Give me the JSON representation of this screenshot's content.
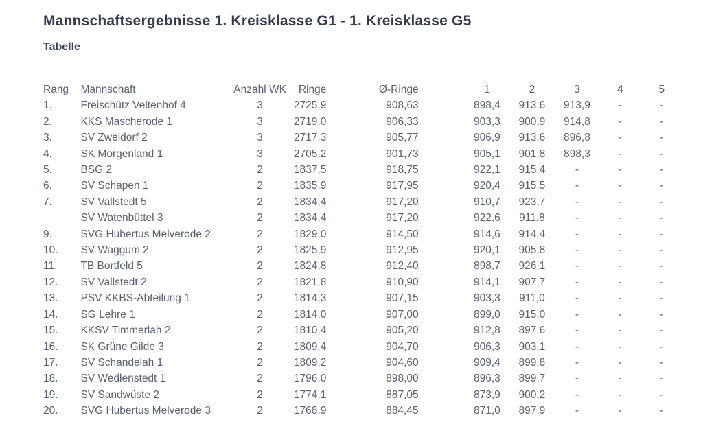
{
  "page": {
    "title": "Mannschaftsergebnisse 1. Kreisklasse G1 - 1. Kreisklasse G5",
    "subtitle": "Tabelle"
  },
  "colors": {
    "background": "#ffffff",
    "title_text": "#343b4d",
    "table_text": "#59606e"
  },
  "table": {
    "columns": [
      "Rang",
      "Mannschaft",
      "Anzahl WK",
      "Ringe",
      "Ø-Ringe",
      "1",
      "2",
      "3",
      "4",
      "5"
    ],
    "rows": [
      [
        "1.",
        "Freischütz Veltenhof 4",
        "3",
        "2725,9",
        "908,63",
        "898,4",
        "913,6",
        "913,9",
        "-",
        "-"
      ],
      [
        "2.",
        "KKS Mascherode 1",
        "3",
        "2719,0",
        "906,33",
        "903,3",
        "900,9",
        "914,8",
        "-",
        "-"
      ],
      [
        "3.",
        "SV Zweidorf 2",
        "3",
        "2717,3",
        "905,77",
        "906,9",
        "913,6",
        "896,8",
        "-",
        "-"
      ],
      [
        "4.",
        "SK Morgenland 1",
        "3",
        "2705,2",
        "901,73",
        "905,1",
        "901,8",
        "898,3",
        "-",
        "-"
      ],
      [
        "5.",
        "BSG 2",
        "2",
        "1837,5",
        "918,75",
        "922,1",
        "915,4",
        "-",
        "-",
        "-"
      ],
      [
        "6.",
        "SV Schapen 1",
        "2",
        "1835,9",
        "917,95",
        "920,4",
        "915,5",
        "-",
        "-",
        "-"
      ],
      [
        "7.",
        "SV Vallstedt 5",
        "2",
        "1834,4",
        "917,20",
        "910,7",
        "923,7",
        "-",
        "-",
        "-"
      ],
      [
        "",
        "SV Watenbüttel 3",
        "2",
        "1834,4",
        "917,20",
        "922,6",
        "911,8",
        "-",
        "-",
        "-"
      ],
      [
        "9.",
        "SVG Hubertus Melverode 2",
        "2",
        "1829,0",
        "914,50",
        "914,6",
        "914,4",
        "-",
        "-",
        "-"
      ],
      [
        "10.",
        "SV Waggum 2",
        "2",
        "1825,9",
        "912,95",
        "920,1",
        "905,8",
        "-",
        "-",
        "-"
      ],
      [
        "11.",
        "TB Bortfeld 5",
        "2",
        "1824,8",
        "912,40",
        "898,7",
        "926,1",
        "-",
        "-",
        "-"
      ],
      [
        "12.",
        "SV Vallstedt 2",
        "2",
        "1821,8",
        "910,90",
        "914,1",
        "907,7",
        "-",
        "-",
        "-"
      ],
      [
        "13.",
        "PSV KKBS-Abteilung 1",
        "2",
        "1814,3",
        "907,15",
        "903,3",
        "911,0",
        "-",
        "-",
        "-"
      ],
      [
        "14.",
        "SG Lehre 1",
        "2",
        "1814,0",
        "907,00",
        "899,0",
        "915,0",
        "-",
        "-",
        "-"
      ],
      [
        "15.",
        "KKSV Timmerlah 2",
        "2",
        "1810,4",
        "905,20",
        "912,8",
        "897,6",
        "-",
        "-",
        "-"
      ],
      [
        "16.",
        "SK Grüne Gilde 3",
        "2",
        "1809,4",
        "904,70",
        "906,3",
        "903,1",
        "-",
        "-",
        "-"
      ],
      [
        "17.",
        "SV Schandelah 1",
        "2",
        "1809,2",
        "904,60",
        "909,4",
        "899,8",
        "-",
        "-",
        "-"
      ],
      [
        "18.",
        "SV Wedlenstedt 1",
        "2",
        "1796,0",
        "898,00",
        "896,3",
        "899,7",
        "-",
        "-",
        "-"
      ],
      [
        "19.",
        "SV Sandwüste 2",
        "2",
        "1774,1",
        "887,05",
        "873,9",
        "900,2",
        "-",
        "-",
        "-"
      ],
      [
        "20.",
        "SVG Hubertus Melverode 3",
        "2",
        "1768,9",
        "884,45",
        "871,0",
        "897,9",
        "-",
        "-",
        "-"
      ]
    ]
  }
}
